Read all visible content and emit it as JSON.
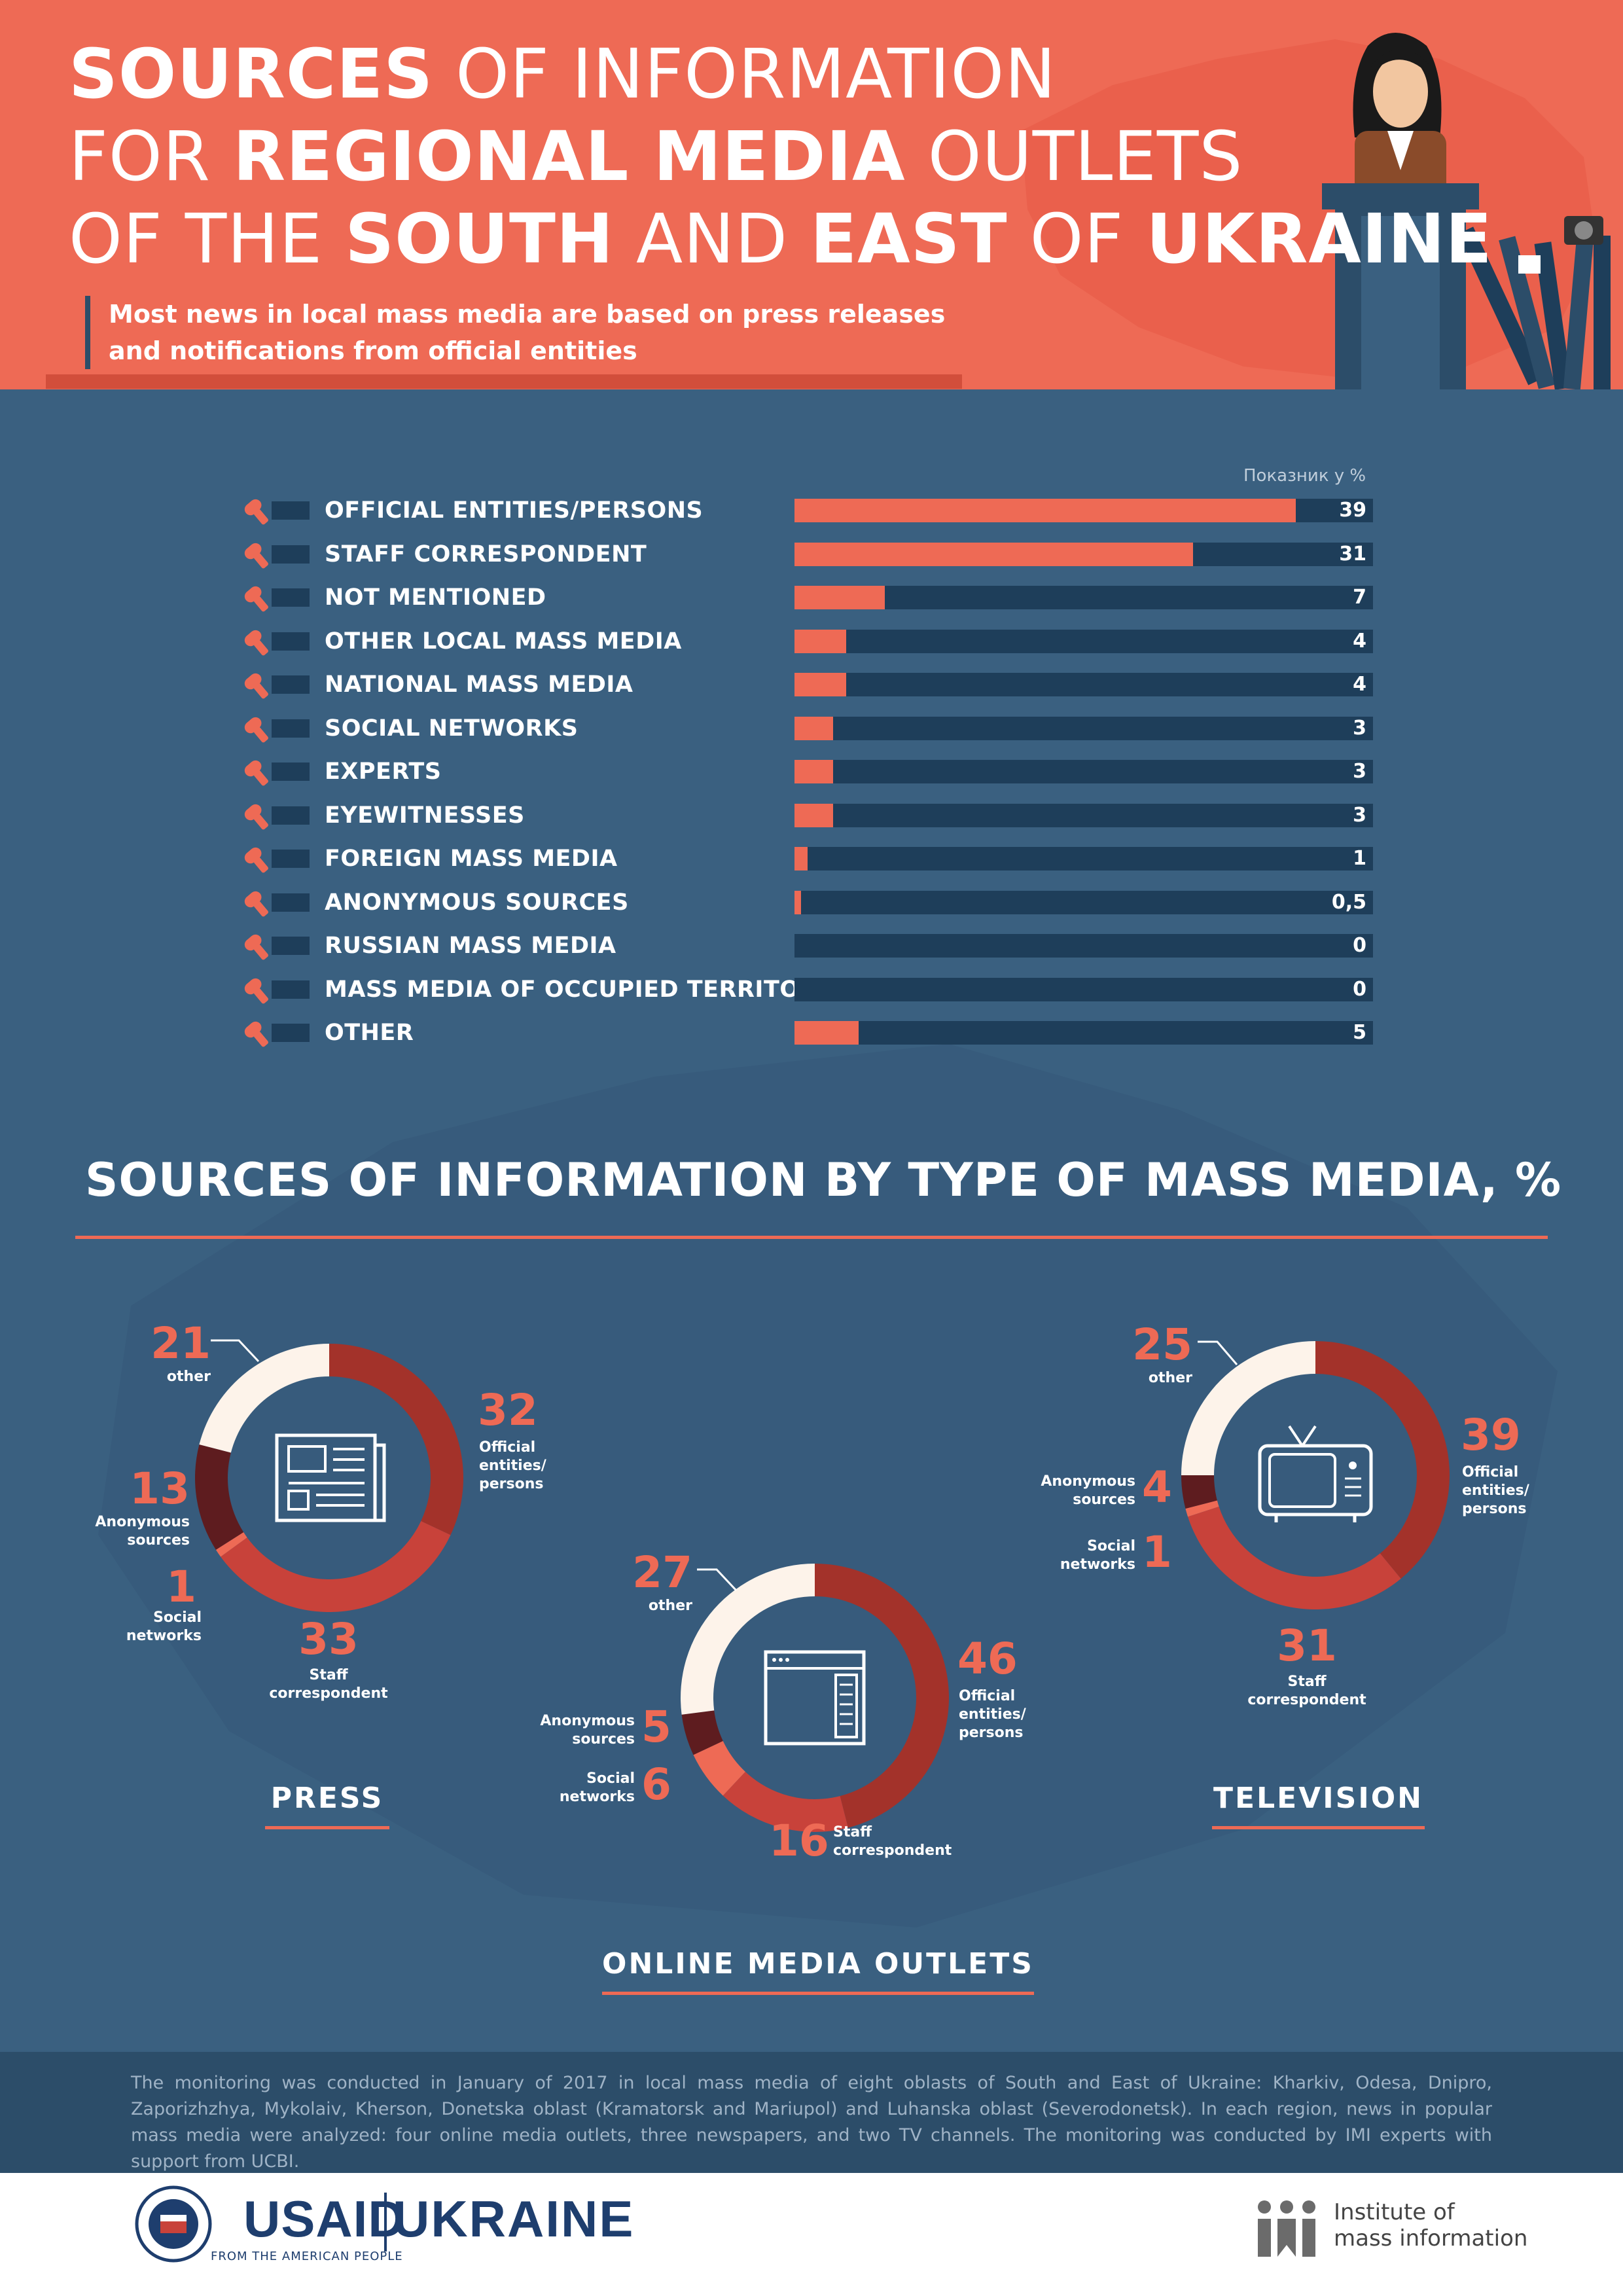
{
  "header": {
    "title_lines": [
      [
        {
          "t": "SOURCES",
          "b": true
        },
        {
          "t": " OF INFORMATION",
          "b": false
        }
      ],
      [
        {
          "t": "FOR ",
          "b": false
        },
        {
          "t": "REGIONAL MEDIA",
          "b": true
        },
        {
          "t": " OUTLETS",
          "b": false
        }
      ],
      [
        {
          "t": "OF THE ",
          "b": false
        },
        {
          "t": "SOUTH",
          "b": true
        },
        {
          "t": " AND ",
          "b": false
        },
        {
          "t": "EAST",
          "b": true
        },
        {
          "t": " OF ",
          "b": false
        },
        {
          "t": "UKRAINE",
          "b": true
        }
      ]
    ],
    "subtitle_lines": [
      "Most news in local mass media are based on press releases",
      "and notifications from official entities"
    ]
  },
  "colors": {
    "accent": "#ee6a55",
    "dark_red": "#a3322a",
    "red": "#c8423a",
    "maroon": "#5e1c1f",
    "cream": "#fdf3ea",
    "navy": "#1e3e5a",
    "background": "#3a6080"
  },
  "chart_data": [
    {
      "type": "bar",
      "unit_label": "Показник у %",
      "categories": [
        "OFFICIAL ENTITIES/PERSONS",
        "STAFF CORRESPONDENT",
        "NOT MENTIONED",
        "OTHER LOCAL MASS MEDIA",
        "NATIONAL MASS MEDIA",
        "SOCIAL NETWORKS",
        "EXPERTS",
        "EYEWITNESSES",
        "FOREIGN MASS MEDIA",
        "ANONYMOUS SOURCES",
        "RUSSIAN MASS MEDIA",
        "MASS MEDIA OF OCCUPIED TERRITORIES",
        "OTHER"
      ],
      "values": [
        39,
        31,
        7,
        4,
        4,
        3,
        3,
        3,
        1,
        0.5,
        0,
        0,
        5
      ],
      "value_labels": [
        "39",
        "31",
        "7",
        "4",
        "4",
        "3",
        "3",
        "3",
        "1",
        "0,5",
        "0",
        "0",
        "5"
      ],
      "xlim": [
        0,
        45
      ],
      "icon": "microphone-icon"
    },
    {
      "type": "pie",
      "section_title": "SOURCES OF INFORMATION BY TYPE OF MASS MEDIA, %",
      "charts": [
        {
          "name": "PRESS",
          "icon": "newspaper-icon",
          "slices": [
            {
              "label": "Official entities/ persons",
              "value": 32,
              "color": "#a3322a"
            },
            {
              "label": "Staff correspondent",
              "value": 33,
              "color": "#c8423a"
            },
            {
              "label": "Social networks",
              "value": 1,
              "color": "#ee6a55"
            },
            {
              "label": "Anonymous sources",
              "value": 13,
              "color": "#5e1c1f"
            },
            {
              "label": "other",
              "value": 21,
              "color": "#fdf3ea"
            }
          ]
        },
        {
          "name": "ONLINE MEDIA OUTLETS",
          "icon": "browser-window-icon",
          "slices": [
            {
              "label": "Official entities/ persons",
              "value": 46,
              "color": "#a3322a"
            },
            {
              "label": "Staff correspondent",
              "value": 16,
              "color": "#c8423a"
            },
            {
              "label": "Social networks",
              "value": 6,
              "color": "#ee6a55"
            },
            {
              "label": "Anonymous sources",
              "value": 5,
              "color": "#5e1c1f"
            },
            {
              "label": "other",
              "value": 27,
              "color": "#fdf3ea"
            }
          ]
        },
        {
          "name": "TELEVISION",
          "icon": "tv-icon",
          "slices": [
            {
              "label": "Official entities/ persons",
              "value": 39,
              "color": "#a3322a"
            },
            {
              "label": "Staff correspondent",
              "value": 31,
              "color": "#c8423a"
            },
            {
              "label": "Social networks",
              "value": 1,
              "color": "#ee6a55"
            },
            {
              "label": "Anonymous sources",
              "value": 4,
              "color": "#5e1c1f"
            },
            {
              "label": "other",
              "value": 25,
              "color": "#fdf3ea"
            }
          ]
        }
      ]
    }
  ],
  "footer": {
    "text": "The monitoring was conducted in January of 2017 in local mass media of eight oblasts of South and East of Ukraine: Kharkiv, Odesa, Dnipro, Zaporizhzhya, Mykolaiv, Kherson, Donetska oblast (Kramatorsk and Mariupol) and Luhanska oblast (Severodonetsk). In each region, news in popular mass media were analyzed: four online media outlets, three newspapers, and two TV channels. The monitoring was conducted by IMI experts with support from UCBI."
  },
  "logos": {
    "usaid": "USAID",
    "usaid_tagline": "FROM THE AMERICAN PEOPLE",
    "ukraine": "UKRAINE",
    "imi_lines": [
      "Institute of",
      "mass information"
    ]
  }
}
